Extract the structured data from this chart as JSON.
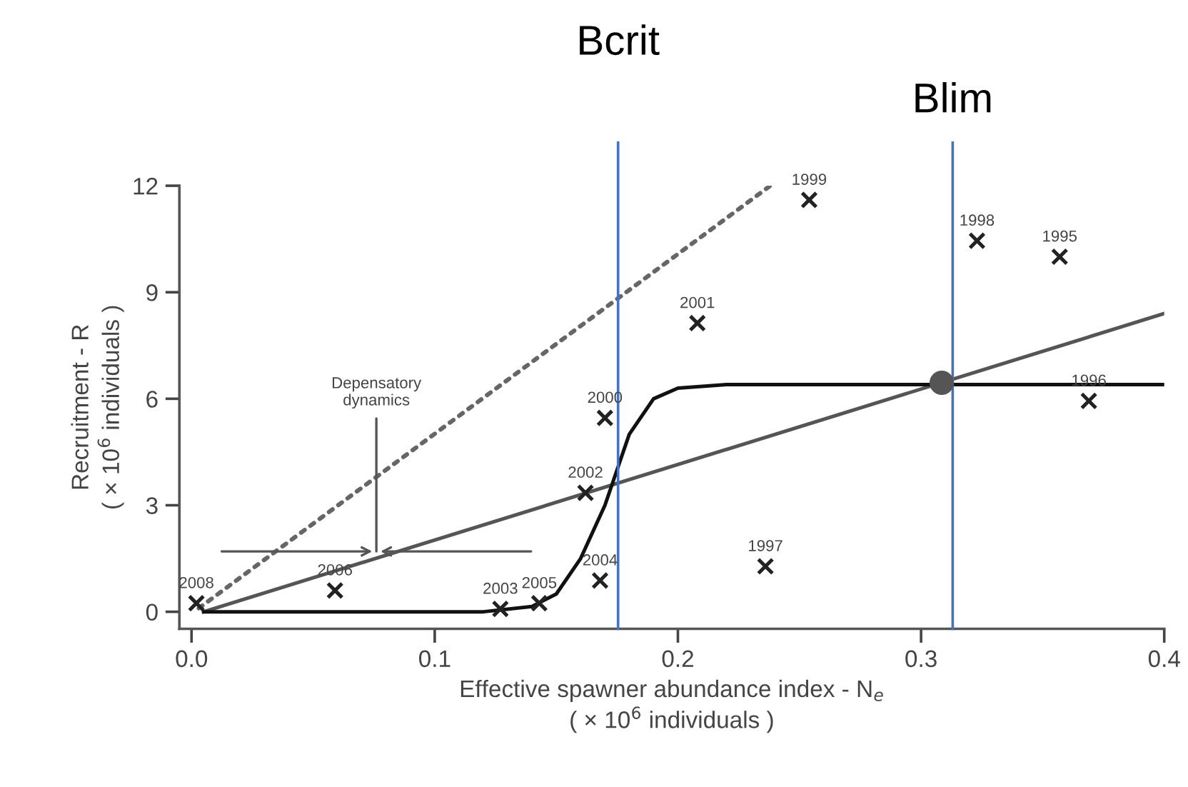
{
  "chart_data": {
    "type": "scatter",
    "xlabel": "Effective spawner abundance index - N$_{e}$\n( × 10$^{6}$ individuals )",
    "ylabel": "Recruitment - R\n( × 10$^{6}$ individuals )",
    "xlim": [
      -0.005,
      0.4
    ],
    "ylim": [
      -0.48,
      12
    ],
    "xticks": [
      {
        "value": 0,
        "label": "0.0"
      },
      0.1,
      0.2,
      0.3,
      0.4
    ],
    "yticks": [
      0,
      3,
      6,
      9,
      12
    ],
    "grid": false,
    "legend": false,
    "series": [
      {
        "type": "line",
        "line_style": "dotted",
        "marker": "none",
        "color": "#666666",
        "x": [
          0.003,
          0.238
        ],
        "values": [
          0.1,
          12.0
        ]
      },
      {
        "type": "line",
        "line_style": "solid",
        "marker": "none",
        "color": "#555555",
        "x": [
          0.005,
          0.4
        ],
        "values": [
          0.0,
          8.4
        ]
      },
      {
        "type": "line",
        "line_style": "solid",
        "marker": "none",
        "color": "#111111",
        "x": [
          0.005,
          0.12,
          0.14,
          0.15,
          0.16,
          0.17,
          0.175,
          0.18,
          0.19,
          0.2,
          0.22,
          0.4
        ],
        "values": [
          0,
          0,
          0.15,
          0.5,
          1.5,
          3.0,
          4.0,
          5.0,
          6.0,
          6.3,
          6.4,
          6.4
        ]
      },
      {
        "type": "scatter",
        "marker": "circle",
        "color": "#555555",
        "x": [
          0.3085
        ],
        "values": [
          6.45
        ]
      },
      {
        "marker": "cross",
        "color": "#222222",
        "x": [
          0.002,
          0.059,
          0.127,
          0.143,
          0.168,
          0.162,
          0.17,
          0.208,
          0.254,
          0.236,
          0.323,
          0.357,
          0.369
        ],
        "values": [
          0.24,
          0.6,
          0.08,
          0.24,
          0.88,
          3.35,
          5.46,
          8.13,
          11.6,
          1.28,
          10.45,
          10.0,
          5.94
        ]
      }
    ],
    "ref_lines": [
      {
        "axis": "x",
        "value": 0.1754,
        "label": "Bcrit",
        "color": "#4472c4"
      },
      {
        "axis": "x",
        "value": 0.313,
        "label": "Blim",
        "color": "#4472c4"
      }
    ],
    "annotations": [
      {
        "text": "2008",
        "x": 0.002,
        "y": 0.24
      },
      {
        "text": "2006",
        "x": 0.059,
        "y": 0.6
      },
      {
        "text": "2003",
        "x": 0.127,
        "y": 0.08
      },
      {
        "text": "2005",
        "x": 0.143,
        "y": 0.24
      },
      {
        "text": "2004",
        "x": 0.168,
        "y": 0.88
      },
      {
        "text": "2002",
        "x": 0.162,
        "y": 3.35
      },
      {
        "text": "2000",
        "x": 0.17,
        "y": 5.46
      },
      {
        "text": "2001",
        "x": 0.208,
        "y": 8.13
      },
      {
        "text": "1999",
        "x": 0.254,
        "y": 11.6
      },
      {
        "text": "1997",
        "x": 0.236,
        "y": 1.28
      },
      {
        "text": "1998",
        "x": 0.323,
        "y": 10.45
      },
      {
        "text": "1995",
        "x": 0.357,
        "y": 10.0
      },
      {
        "text": "1996",
        "x": 0.369,
        "y": 5.94
      },
      {
        "text": "Depensatory\ndynamics",
        "x": 0.076,
        "y": 1.7
      }
    ]
  }
}
